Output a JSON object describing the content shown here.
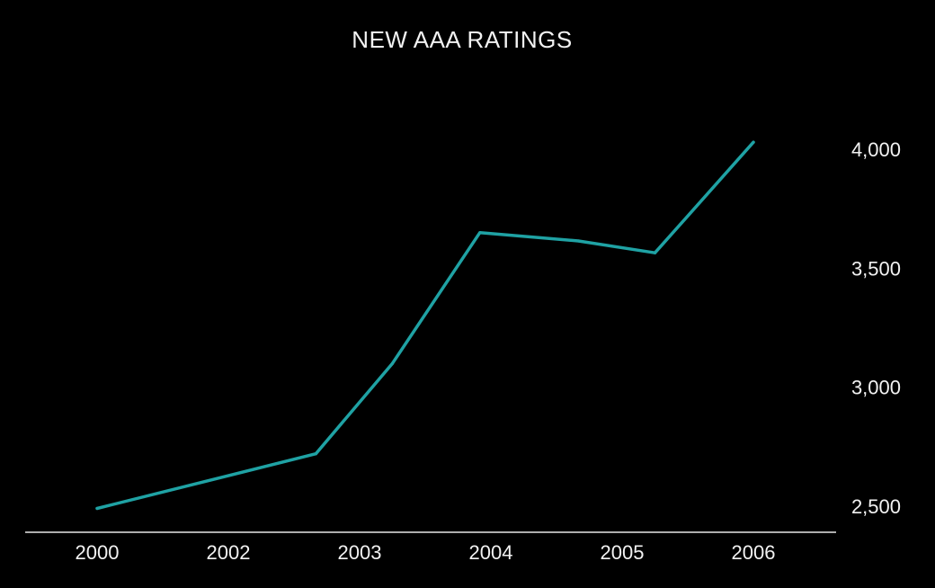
{
  "chart_data": {
    "type": "line",
    "title": "NEW AAA RATINGS",
    "xlabel": "",
    "ylabel": "",
    "x_tick_labels": [
      "2000",
      "2002",
      "2003",
      "2004",
      "2005",
      "2006"
    ],
    "y_tick_labels": [
      "4,000",
      "3,500",
      "3,000",
      "2,500"
    ],
    "y_ticks": [
      4000,
      3500,
      3000,
      2500
    ],
    "ylim": [
      2390,
      4250
    ],
    "y_axis_side": "right",
    "grid": false,
    "series": [
      {
        "color": "#1fa2a4",
        "points": [
          {
            "x": 2000.0,
            "y": 2490
          },
          {
            "x": 2002.0,
            "y": 2720
          },
          {
            "x": 2002.7,
            "y": 3100
          },
          {
            "x": 2003.5,
            "y": 3650
          },
          {
            "x": 2004.4,
            "y": 3615
          },
          {
            "x": 2005.1,
            "y": 3565
          },
          {
            "x": 2006.0,
            "y": 4030
          }
        ]
      }
    ]
  },
  "colors": {
    "background": "#000000",
    "text": "#f2f2f2",
    "baseline": "#e8e8e8",
    "line": "#1fa2a4"
  }
}
